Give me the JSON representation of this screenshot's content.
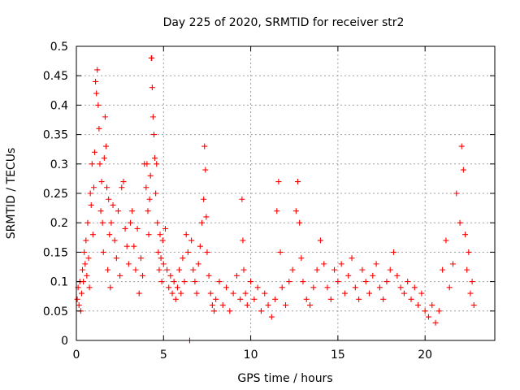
{
  "chart_data": {
    "type": "scatter",
    "title": "Day 225 of 2020, SRMTID for receiver str2",
    "xlabel": "GPS time / hours",
    "ylabel": "SRMTID / TECUs",
    "xlim": [
      0,
      24
    ],
    "ylim": [
      0,
      0.5
    ],
    "x_ticks": [
      0,
      5,
      10,
      15,
      20
    ],
    "x_tick_labels": [
      "0",
      "5",
      "10",
      "15",
      "20"
    ],
    "y_ticks": [
      0,
      0.05,
      0.1,
      0.15,
      0.2,
      0.25,
      0.3,
      0.35,
      0.4,
      0.45,
      0.5
    ],
    "y_tick_labels": [
      "0",
      "0.05",
      "0.1",
      "0.15",
      "0.2",
      "0.25",
      "0.3",
      "0.35",
      "0.4",
      "0.45",
      "0.5"
    ],
    "grid": true,
    "marker": "+",
    "marker_color": "#ff0000",
    "series": [
      {
        "name": "str2",
        "points": [
          [
            0.05,
            0.07
          ],
          [
            0.1,
            0.09
          ],
          [
            0.15,
            0.06
          ],
          [
            0.2,
            0.1
          ],
          [
            0.25,
            0.05
          ],
          [
            0.3,
            0.08
          ],
          [
            0.35,
            0.12
          ],
          [
            0.4,
            0.1
          ],
          [
            0.45,
            0.15
          ],
          [
            0.5,
            0.13
          ],
          [
            0.55,
            0.17
          ],
          [
            0.6,
            0.11
          ],
          [
            0.65,
            0.2
          ],
          [
            0.7,
            0.14
          ],
          [
            0.75,
            0.09
          ],
          [
            0.8,
            0.25
          ],
          [
            0.85,
            0.23
          ],
          [
            0.9,
            0.3
          ],
          [
            0.95,
            0.18
          ],
          [
            1.0,
            0.26
          ],
          [
            1.05,
            0.32
          ],
          [
            1.1,
            0.44
          ],
          [
            1.15,
            0.42
          ],
          [
            1.2,
            0.46
          ],
          [
            1.25,
            0.4
          ],
          [
            1.3,
            0.36
          ],
          [
            1.35,
            0.3
          ],
          [
            1.4,
            0.22
          ],
          [
            1.45,
            0.27
          ],
          [
            1.5,
            0.2
          ],
          [
            1.55,
            0.15
          ],
          [
            1.6,
            0.31
          ],
          [
            1.65,
            0.38
          ],
          [
            1.7,
            0.33
          ],
          [
            1.75,
            0.26
          ],
          [
            1.8,
            0.12
          ],
          [
            1.85,
            0.24
          ],
          [
            1.9,
            0.18
          ],
          [
            1.95,
            0.09
          ],
          [
            2.0,
            0.2
          ],
          [
            2.1,
            0.23
          ],
          [
            2.2,
            0.17
          ],
          [
            2.3,
            0.14
          ],
          [
            2.4,
            0.22
          ],
          [
            2.5,
            0.11
          ],
          [
            2.6,
            0.26
          ],
          [
            2.7,
            0.27
          ],
          [
            2.8,
            0.19
          ],
          [
            2.9,
            0.16
          ],
          [
            3.0,
            0.13
          ],
          [
            3.1,
            0.2
          ],
          [
            3.2,
            0.22
          ],
          [
            3.3,
            0.16
          ],
          [
            3.4,
            0.12
          ],
          [
            3.5,
            0.19
          ],
          [
            3.6,
            0.08
          ],
          [
            3.7,
            0.14
          ],
          [
            3.8,
            0.11
          ],
          [
            3.9,
            0.3
          ],
          [
            4.0,
            0.26
          ],
          [
            4.05,
            0.3
          ],
          [
            4.1,
            0.22
          ],
          [
            4.15,
            0.18
          ],
          [
            4.2,
            0.24
          ],
          [
            4.25,
            0.28
          ],
          [
            4.3,
            0.48
          ],
          [
            4.32,
            0.48
          ],
          [
            4.35,
            0.43
          ],
          [
            4.4,
            0.38
          ],
          [
            4.45,
            0.35
          ],
          [
            4.5,
            0.31
          ],
          [
            4.55,
            0.25
          ],
          [
            4.6,
            0.3
          ],
          [
            4.65,
            0.2
          ],
          [
            4.7,
            0.15
          ],
          [
            4.75,
            0.12
          ],
          [
            4.8,
            0.18
          ],
          [
            4.85,
            0.14
          ],
          [
            4.9,
            0.1
          ],
          [
            4.95,
            0.17
          ],
          [
            5.0,
            0.13
          ],
          [
            5.1,
            0.19
          ],
          [
            5.2,
            0.12
          ],
          [
            5.3,
            0.09
          ],
          [
            5.4,
            0.11
          ],
          [
            5.5,
            0.08
          ],
          [
            5.6,
            0.1
          ],
          [
            5.7,
            0.07
          ],
          [
            5.8,
            0.09
          ],
          [
            5.9,
            0.12
          ],
          [
            6.0,
            0.08
          ],
          [
            6.1,
            0.14
          ],
          [
            6.2,
            0.1
          ],
          [
            6.3,
            0.18
          ],
          [
            6.4,
            0.15
          ],
          [
            6.5,
            0.0
          ],
          [
            6.6,
            0.17
          ],
          [
            6.7,
            0.12
          ],
          [
            6.8,
            0.1
          ],
          [
            6.9,
            0.08
          ],
          [
            7.0,
            0.13
          ],
          [
            7.1,
            0.16
          ],
          [
            7.2,
            0.2
          ],
          [
            7.3,
            0.24
          ],
          [
            7.35,
            0.33
          ],
          [
            7.4,
            0.29
          ],
          [
            7.45,
            0.21
          ],
          [
            7.5,
            0.15
          ],
          [
            7.6,
            0.11
          ],
          [
            7.7,
            0.08
          ],
          [
            7.8,
            0.06
          ],
          [
            7.9,
            0.05
          ],
          [
            8.0,
            0.07
          ],
          [
            8.2,
            0.1
          ],
          [
            8.4,
            0.06
          ],
          [
            8.6,
            0.09
          ],
          [
            8.8,
            0.05
          ],
          [
            9.0,
            0.08
          ],
          [
            9.2,
            0.11
          ],
          [
            9.4,
            0.07
          ],
          [
            9.5,
            0.24
          ],
          [
            9.55,
            0.17
          ],
          [
            9.6,
            0.12
          ],
          [
            9.7,
            0.08
          ],
          [
            9.8,
            0.06
          ],
          [
            10.0,
            0.1
          ],
          [
            10.2,
            0.07
          ],
          [
            10.4,
            0.09
          ],
          [
            10.6,
            0.05
          ],
          [
            10.8,
            0.08
          ],
          [
            11.0,
            0.06
          ],
          [
            11.2,
            0.04
          ],
          [
            11.4,
            0.07
          ],
          [
            11.5,
            0.22
          ],
          [
            11.6,
            0.27
          ],
          [
            11.7,
            0.15
          ],
          [
            11.8,
            0.09
          ],
          [
            12.0,
            0.06
          ],
          [
            12.2,
            0.1
          ],
          [
            12.4,
            0.12
          ],
          [
            12.6,
            0.22
          ],
          [
            12.7,
            0.27
          ],
          [
            12.8,
            0.2
          ],
          [
            12.9,
            0.14
          ],
          [
            13.0,
            0.1
          ],
          [
            13.2,
            0.07
          ],
          [
            13.4,
            0.06
          ],
          [
            13.6,
            0.09
          ],
          [
            13.8,
            0.12
          ],
          [
            14.0,
            0.17
          ],
          [
            14.2,
            0.13
          ],
          [
            14.4,
            0.09
          ],
          [
            14.6,
            0.07
          ],
          [
            14.8,
            0.12
          ],
          [
            15.0,
            0.1
          ],
          [
            15.2,
            0.13
          ],
          [
            15.4,
            0.08
          ],
          [
            15.6,
            0.11
          ],
          [
            15.8,
            0.14
          ],
          [
            16.0,
            0.09
          ],
          [
            16.2,
            0.07
          ],
          [
            16.4,
            0.12
          ],
          [
            16.6,
            0.1
          ],
          [
            16.8,
            0.08
          ],
          [
            17.0,
            0.11
          ],
          [
            17.2,
            0.13
          ],
          [
            17.4,
            0.09
          ],
          [
            17.6,
            0.07
          ],
          [
            17.8,
            0.1
          ],
          [
            18.0,
            0.12
          ],
          [
            18.2,
            0.15
          ],
          [
            18.4,
            0.11
          ],
          [
            18.6,
            0.09
          ],
          [
            18.8,
            0.08
          ],
          [
            19.0,
            0.1
          ],
          [
            19.2,
            0.07
          ],
          [
            19.4,
            0.09
          ],
          [
            19.6,
            0.06
          ],
          [
            19.8,
            0.08
          ],
          [
            20.0,
            0.05
          ],
          [
            20.2,
            0.04
          ],
          [
            20.4,
            0.06
          ],
          [
            20.6,
            0.03
          ],
          [
            20.8,
            0.05
          ],
          [
            21.0,
            0.12
          ],
          [
            21.2,
            0.17
          ],
          [
            21.4,
            0.09
          ],
          [
            21.6,
            0.13
          ],
          [
            21.8,
            0.25
          ],
          [
            22.0,
            0.2
          ],
          [
            22.1,
            0.33
          ],
          [
            22.2,
            0.29
          ],
          [
            22.3,
            0.18
          ],
          [
            22.4,
            0.12
          ],
          [
            22.5,
            0.15
          ],
          [
            22.6,
            0.08
          ],
          [
            22.7,
            0.1
          ],
          [
            22.8,
            0.06
          ]
        ]
      }
    ]
  }
}
